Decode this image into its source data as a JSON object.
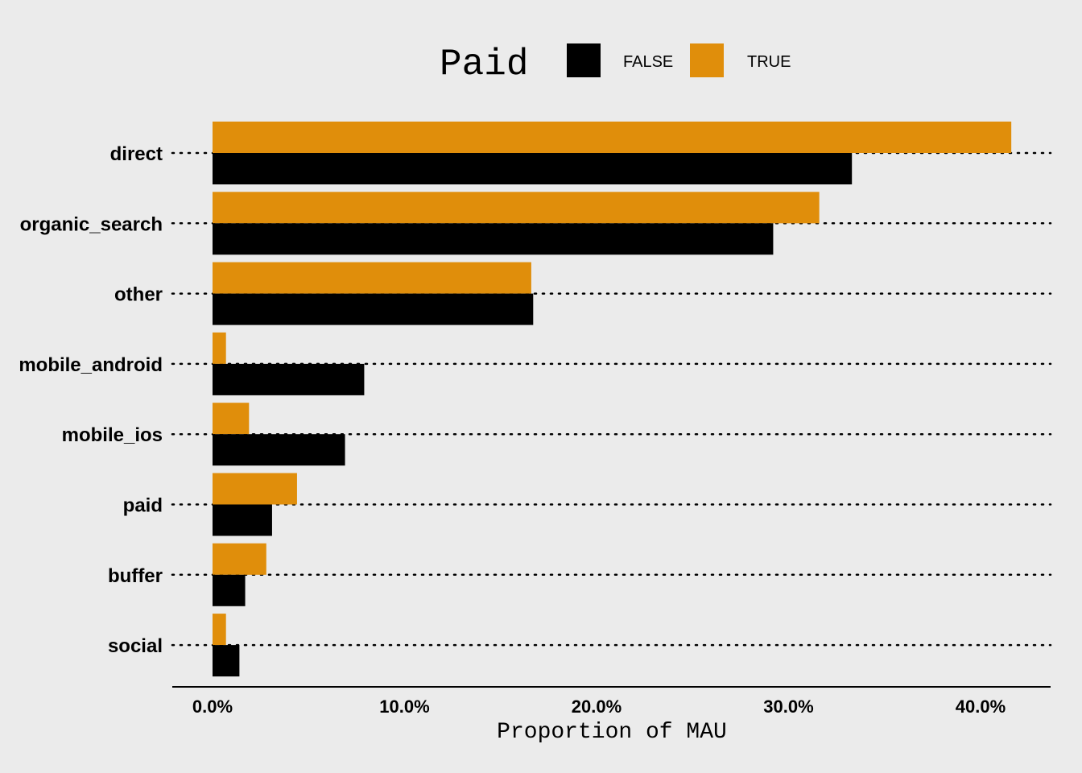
{
  "chart_data": {
    "type": "bar",
    "orientation": "horizontal",
    "legend": {
      "title": "Paid",
      "placement": "top",
      "entries": [
        {
          "label": "FALSE",
          "color": "#000000"
        },
        {
          "label": "TRUE",
          "color": "#e08e0b"
        }
      ]
    },
    "categories": [
      "direct",
      "organic_search",
      "other",
      "mobile_android",
      "mobile_ios",
      "paid",
      "buffer",
      "social"
    ],
    "series": [
      {
        "name": "TRUE",
        "color": "#e08e0b",
        "values": [
          41.6,
          31.6,
          16.6,
          0.7,
          1.9,
          4.4,
          2.8,
          0.7
        ]
      },
      {
        "name": "FALSE",
        "color": "#000000",
        "values": [
          33.3,
          29.2,
          16.7,
          7.9,
          6.9,
          3.1,
          1.7,
          1.4
        ]
      }
    ],
    "xlabel": "Proportion of MAU",
    "ylabel": "",
    "xlim": [
      -2,
      43.5
    ],
    "xticks": [
      0,
      10,
      20,
      30,
      40
    ],
    "xtick_labels": [
      "0.0%",
      "10.0%",
      "20.0%",
      "30.0%",
      "40.0%"
    ],
    "grid": "horizontal dotted"
  }
}
